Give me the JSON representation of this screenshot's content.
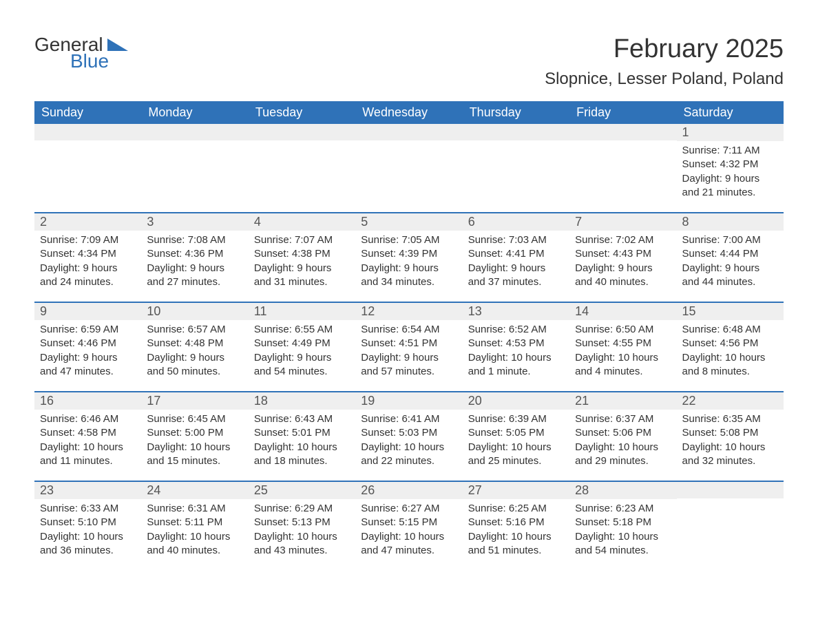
{
  "logo": {
    "general": "General",
    "blue": "Blue"
  },
  "title": "February 2025",
  "location": "Slopnice, Lesser Poland, Poland",
  "colors": {
    "header_bg": "#2f72b8",
    "header_text": "#ffffff",
    "daynum_bg": "#efefef",
    "text": "#333333",
    "logo_blue": "#2f72b8"
  },
  "days_of_week": [
    "Sunday",
    "Monday",
    "Tuesday",
    "Wednesday",
    "Thursday",
    "Friday",
    "Saturday"
  ],
  "weeks": [
    [
      {
        "n": "",
        "sr": "",
        "ss": "",
        "dl": ""
      },
      {
        "n": "",
        "sr": "",
        "ss": "",
        "dl": ""
      },
      {
        "n": "",
        "sr": "",
        "ss": "",
        "dl": ""
      },
      {
        "n": "",
        "sr": "",
        "ss": "",
        "dl": ""
      },
      {
        "n": "",
        "sr": "",
        "ss": "",
        "dl": ""
      },
      {
        "n": "",
        "sr": "",
        "ss": "",
        "dl": ""
      },
      {
        "n": "1",
        "sr": "Sunrise: 7:11 AM",
        "ss": "Sunset: 4:32 PM",
        "dl": "Daylight: 9 hours and 21 minutes."
      }
    ],
    [
      {
        "n": "2",
        "sr": "Sunrise: 7:09 AM",
        "ss": "Sunset: 4:34 PM",
        "dl": "Daylight: 9 hours and 24 minutes."
      },
      {
        "n": "3",
        "sr": "Sunrise: 7:08 AM",
        "ss": "Sunset: 4:36 PM",
        "dl": "Daylight: 9 hours and 27 minutes."
      },
      {
        "n": "4",
        "sr": "Sunrise: 7:07 AM",
        "ss": "Sunset: 4:38 PM",
        "dl": "Daylight: 9 hours and 31 minutes."
      },
      {
        "n": "5",
        "sr": "Sunrise: 7:05 AM",
        "ss": "Sunset: 4:39 PM",
        "dl": "Daylight: 9 hours and 34 minutes."
      },
      {
        "n": "6",
        "sr": "Sunrise: 7:03 AM",
        "ss": "Sunset: 4:41 PM",
        "dl": "Daylight: 9 hours and 37 minutes."
      },
      {
        "n": "7",
        "sr": "Sunrise: 7:02 AM",
        "ss": "Sunset: 4:43 PM",
        "dl": "Daylight: 9 hours and 40 minutes."
      },
      {
        "n": "8",
        "sr": "Sunrise: 7:00 AM",
        "ss": "Sunset: 4:44 PM",
        "dl": "Daylight: 9 hours and 44 minutes."
      }
    ],
    [
      {
        "n": "9",
        "sr": "Sunrise: 6:59 AM",
        "ss": "Sunset: 4:46 PM",
        "dl": "Daylight: 9 hours and 47 minutes."
      },
      {
        "n": "10",
        "sr": "Sunrise: 6:57 AM",
        "ss": "Sunset: 4:48 PM",
        "dl": "Daylight: 9 hours and 50 minutes."
      },
      {
        "n": "11",
        "sr": "Sunrise: 6:55 AM",
        "ss": "Sunset: 4:49 PM",
        "dl": "Daylight: 9 hours and 54 minutes."
      },
      {
        "n": "12",
        "sr": "Sunrise: 6:54 AM",
        "ss": "Sunset: 4:51 PM",
        "dl": "Daylight: 9 hours and 57 minutes."
      },
      {
        "n": "13",
        "sr": "Sunrise: 6:52 AM",
        "ss": "Sunset: 4:53 PM",
        "dl": "Daylight: 10 hours and 1 minute."
      },
      {
        "n": "14",
        "sr": "Sunrise: 6:50 AM",
        "ss": "Sunset: 4:55 PM",
        "dl": "Daylight: 10 hours and 4 minutes."
      },
      {
        "n": "15",
        "sr": "Sunrise: 6:48 AM",
        "ss": "Sunset: 4:56 PM",
        "dl": "Daylight: 10 hours and 8 minutes."
      }
    ],
    [
      {
        "n": "16",
        "sr": "Sunrise: 6:46 AM",
        "ss": "Sunset: 4:58 PM",
        "dl": "Daylight: 10 hours and 11 minutes."
      },
      {
        "n": "17",
        "sr": "Sunrise: 6:45 AM",
        "ss": "Sunset: 5:00 PM",
        "dl": "Daylight: 10 hours and 15 minutes."
      },
      {
        "n": "18",
        "sr": "Sunrise: 6:43 AM",
        "ss": "Sunset: 5:01 PM",
        "dl": "Daylight: 10 hours and 18 minutes."
      },
      {
        "n": "19",
        "sr": "Sunrise: 6:41 AM",
        "ss": "Sunset: 5:03 PM",
        "dl": "Daylight: 10 hours and 22 minutes."
      },
      {
        "n": "20",
        "sr": "Sunrise: 6:39 AM",
        "ss": "Sunset: 5:05 PM",
        "dl": "Daylight: 10 hours and 25 minutes."
      },
      {
        "n": "21",
        "sr": "Sunrise: 6:37 AM",
        "ss": "Sunset: 5:06 PM",
        "dl": "Daylight: 10 hours and 29 minutes."
      },
      {
        "n": "22",
        "sr": "Sunrise: 6:35 AM",
        "ss": "Sunset: 5:08 PM",
        "dl": "Daylight: 10 hours and 32 minutes."
      }
    ],
    [
      {
        "n": "23",
        "sr": "Sunrise: 6:33 AM",
        "ss": "Sunset: 5:10 PM",
        "dl": "Daylight: 10 hours and 36 minutes."
      },
      {
        "n": "24",
        "sr": "Sunrise: 6:31 AM",
        "ss": "Sunset: 5:11 PM",
        "dl": "Daylight: 10 hours and 40 minutes."
      },
      {
        "n": "25",
        "sr": "Sunrise: 6:29 AM",
        "ss": "Sunset: 5:13 PM",
        "dl": "Daylight: 10 hours and 43 minutes."
      },
      {
        "n": "26",
        "sr": "Sunrise: 6:27 AM",
        "ss": "Sunset: 5:15 PM",
        "dl": "Daylight: 10 hours and 47 minutes."
      },
      {
        "n": "27",
        "sr": "Sunrise: 6:25 AM",
        "ss": "Sunset: 5:16 PM",
        "dl": "Daylight: 10 hours and 51 minutes."
      },
      {
        "n": "28",
        "sr": "Sunrise: 6:23 AM",
        "ss": "Sunset: 5:18 PM",
        "dl": "Daylight: 10 hours and 54 minutes."
      },
      {
        "n": "",
        "sr": "",
        "ss": "",
        "dl": ""
      }
    ]
  ]
}
